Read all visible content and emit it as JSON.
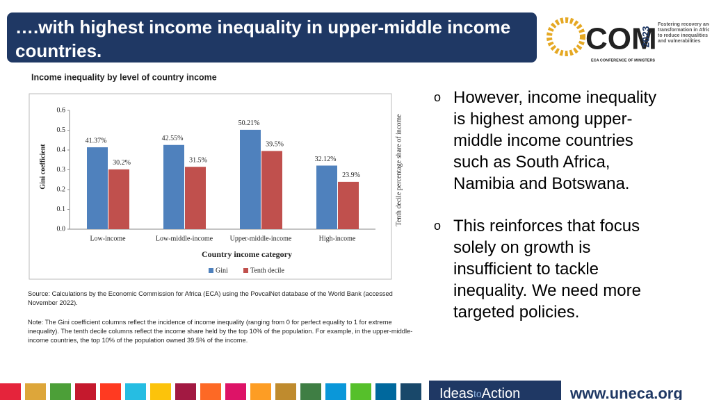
{
  "header": {
    "title": "….with highest income inequality in upper-middle income countries."
  },
  "logo": {
    "mark": "COM",
    "year": "2023",
    "tagline": [
      "Fostering recovery and",
      "transformation in Africa",
      "to reduce inequalities",
      "and vulnerabilities"
    ],
    "caption": "ECA CONFERENCE OF MINISTERS"
  },
  "chart_data": {
    "type": "bar",
    "title": "Income inequality by level of country income",
    "categories": [
      "Low-income",
      "Low-middle-income",
      "Upper-middle-income",
      "High-income"
    ],
    "series": [
      {
        "name": "Gini",
        "color": "#4f81bd",
        "values": [
          0.4137,
          0.4255,
          0.5021,
          0.3212
        ],
        "value_labels": [
          "41.37%",
          "42.55%",
          "50.21%",
          "32.12%"
        ]
      },
      {
        "name": "Tenth decile",
        "color": "#c0504d",
        "values": [
          0.302,
          0.315,
          0.395,
          0.239
        ],
        "value_labels": [
          "30.2%",
          "31.5%",
          "39.5%",
          "23.9%"
        ]
      }
    ],
    "ylim": [
      0,
      0.6
    ],
    "yticks": [
      {
        "value": 0,
        "label": "0.0"
      },
      0.1,
      0.2,
      0.3,
      0.4,
      0.5,
      0.6
    ],
    "y_label": "Gini coefficient",
    "y2_label": "Tenth decile percentage share of income",
    "x_label": "Country income category",
    "legend": "bottom",
    "grid": false
  },
  "notes": {
    "source": "Source: Calculations by the Economic Commission for Africa (ECA) using the PovcalNet database of the World Bank (accessed November 2022).",
    "note": "Note: The Gini coefficient columns reflect the incidence of income inequality (ranging from 0 for perfect equality to 1 for extreme inequality). The tenth decile columns reflect the income share held by the top 10% of the population. For example, in the upper-middle-income countries, the top 10% of the population owned 39.5% of the income."
  },
  "bullets": [
    "However, income inequality is highest among upper-middle income countries such as South Africa, Namibia and Botswana.",
    "This reinforces that focus solely on growth is insufficient to tackle inequality. We need more targeted policies."
  ],
  "footer": {
    "brand": [
      "Ideas",
      "to",
      "Action"
    ],
    "url": "www.uneca.org"
  }
}
